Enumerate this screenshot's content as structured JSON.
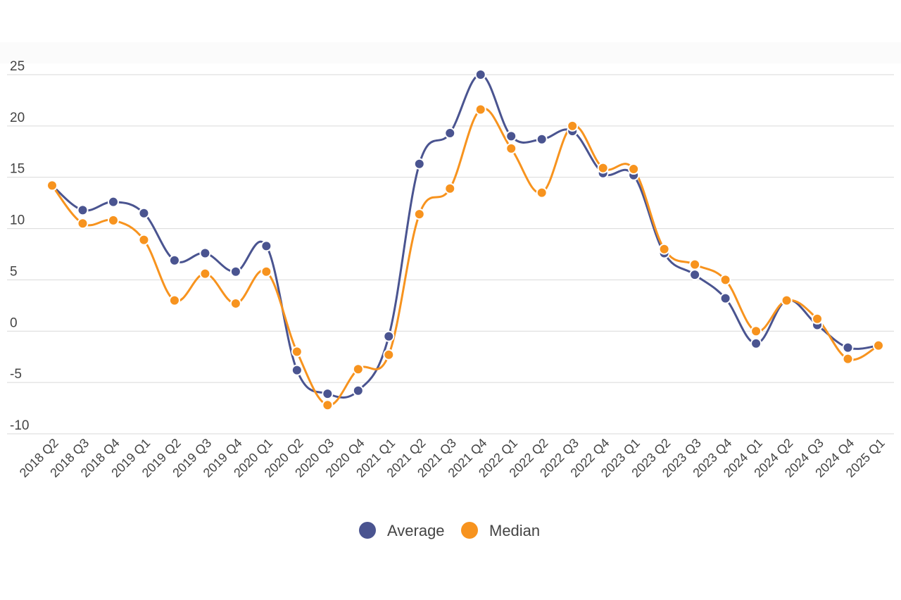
{
  "chart_data": {
    "type": "line",
    "title": "",
    "xlabel": "",
    "ylabel": "",
    "ylim": [
      -10,
      25
    ],
    "yticks": [
      25,
      20,
      15,
      10,
      5,
      0,
      -5,
      -10
    ],
    "grid": true,
    "legend_position": "bottom-center",
    "categories": [
      "2018 Q2",
      "2018 Q3",
      "2018 Q4",
      "2019 Q1",
      "2019 Q2",
      "2019 Q3",
      "2019 Q4",
      "2020 Q1",
      "2020 Q2",
      "2020 Q3",
      "2020 Q4",
      "2021 Q1",
      "2021 Q2",
      "2021 Q3",
      "2021 Q4",
      "2022 Q1",
      "2022 Q2",
      "2022 Q3",
      "2022 Q4",
      "2023 Q1",
      "2023 Q2",
      "2023 Q3",
      "2023 Q4",
      "2024 Q1",
      "2024 Q2",
      "2024 Q3",
      "2024 Q4",
      "2025 Q1"
    ],
    "series": [
      {
        "name": "Average",
        "color": "#4a5490",
        "values": [
          14.2,
          11.8,
          12.6,
          11.5,
          6.9,
          7.6,
          5.8,
          8.3,
          -3.8,
          -6.1,
          -5.8,
          -0.5,
          16.3,
          19.3,
          25.0,
          19.0,
          18.7,
          19.5,
          15.4,
          15.2,
          7.6,
          5.5,
          3.2,
          -1.2,
          3.0,
          0.6,
          -1.6,
          -1.4
        ]
      },
      {
        "name": "Median",
        "color": "#f7931e",
        "values": [
          14.2,
          10.5,
          10.8,
          8.9,
          3.0,
          5.6,
          2.7,
          5.8,
          -2.0,
          -7.2,
          -3.7,
          -2.3,
          11.4,
          13.9,
          21.6,
          17.8,
          13.5,
          20.0,
          15.9,
          15.8,
          8.0,
          6.5,
          5.0,
          0.0,
          3.0,
          1.2,
          -2.7,
          -1.4
        ]
      }
    ]
  }
}
